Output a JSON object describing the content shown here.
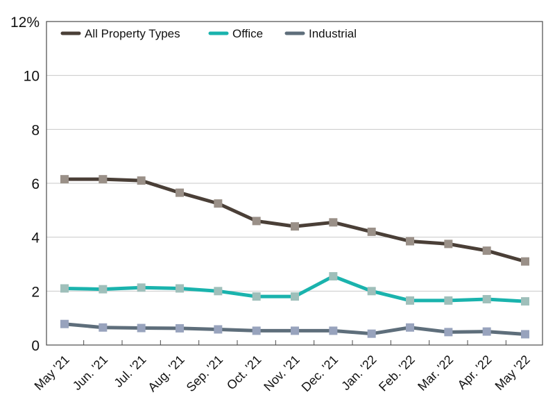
{
  "chart_data": {
    "type": "line",
    "title": "",
    "xlabel": "",
    "ylabel": "",
    "categories": [
      "May '21",
      "Jun. '21",
      "Jul. '21",
      "Aug. '21",
      "Sep. '21",
      "Oct. '21",
      "Nov. '21",
      "Dec. '21",
      "Jan. '22",
      "Feb. '22",
      "Mar. '22",
      "Apr. '22",
      "May '22"
    ],
    "ylim": [
      0,
      12
    ],
    "yticks": [
      0,
      2,
      4,
      6,
      8,
      10,
      12
    ],
    "ytick_labels": [
      "0",
      "2",
      "4",
      "6",
      "8",
      "10",
      "12%"
    ],
    "grid": "horizontal",
    "legend_position": "top-left",
    "series": [
      {
        "name": "All Property Types",
        "color": "#4a3f37",
        "marker_color": "#9a9088",
        "values": [
          6.15,
          6.15,
          6.1,
          5.65,
          5.25,
          4.6,
          4.4,
          4.55,
          4.2,
          3.85,
          3.75,
          3.5,
          3.1
        ]
      },
      {
        "name": "Office",
        "color": "#1ab3ad",
        "marker_color": "#9fbfba",
        "values": [
          2.1,
          2.07,
          2.13,
          2.1,
          2.0,
          1.8,
          1.8,
          2.55,
          2.0,
          1.65,
          1.65,
          1.7,
          1.62
        ]
      },
      {
        "name": "Industrial",
        "color": "#5e6e7b",
        "marker_color": "#98a3bd",
        "values": [
          0.78,
          0.65,
          0.63,
          0.62,
          0.58,
          0.53,
          0.53,
          0.53,
          0.42,
          0.65,
          0.48,
          0.5,
          0.4
        ]
      }
    ]
  }
}
